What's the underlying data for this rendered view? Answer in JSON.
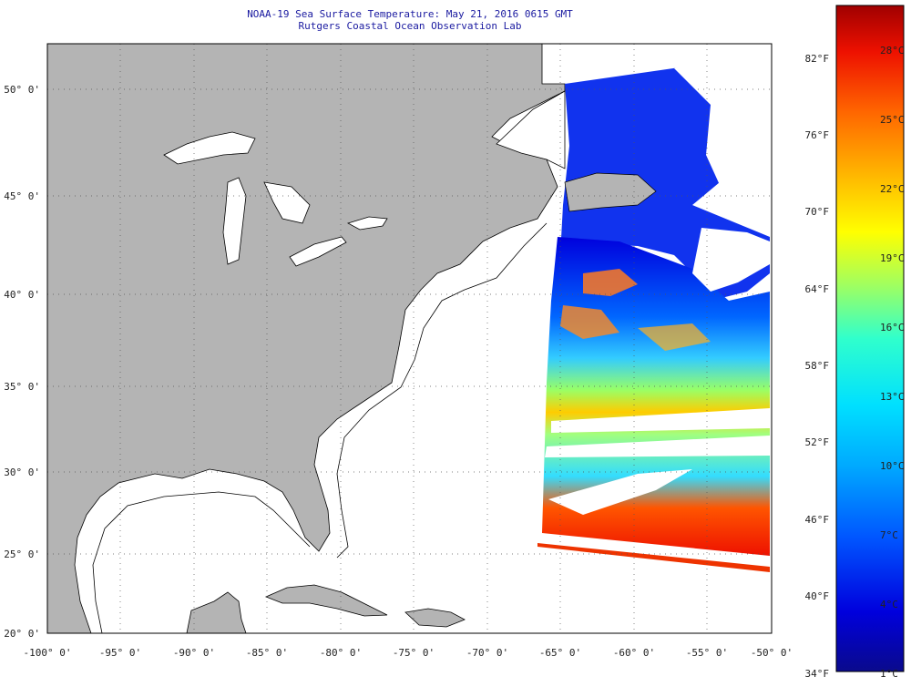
{
  "title": {
    "line1": "NOAA-19 Sea Surface Temperature:  May 21, 2016 0615 GMT",
    "line2": "Rutgers Coastal Ocean Observation Lab"
  },
  "map": {
    "lon_range": [
      -100,
      -50
    ],
    "lat_range": [
      20,
      52.3
    ],
    "lat_labels": [
      "50° 0'",
      "45° 0'",
      "40° 0'",
      "35° 0'",
      "30° 0'",
      "25° 0'",
      "20° 0'"
    ],
    "lon_labels": [
      "-100° 0'",
      "-95° 0'",
      "-90° 0'",
      "-85° 0'",
      "-80° 0'",
      "-75° 0'",
      "-70° 0'",
      "-65° 0'",
      "-60° 0'",
      "-55° 0'",
      "-50° 0'"
    ],
    "land_color": "#b4b4b4",
    "ocean_color": "#ffffff",
    "grid_style": "dotted"
  },
  "colorbar": {
    "fahrenheit_labels": [
      "82°F",
      "76°F",
      "70°F",
      "64°F",
      "58°F",
      "52°F",
      "46°F",
      "40°F",
      "34°F"
    ],
    "celsius_labels": [
      "28°C",
      "25°C",
      "22°C",
      "19°C",
      "16°C",
      "13°C",
      "10°C",
      "7°C",
      "4°C",
      "1°C"
    ],
    "colors": [
      "#0a0a8c",
      "#0000dd",
      "#0055ff",
      "#00aaff",
      "#00e0ff",
      "#30ffcc",
      "#a0ff60",
      "#ffff00",
      "#ffbb00",
      "#ff6600",
      "#ee1100",
      "#a00000"
    ]
  }
}
